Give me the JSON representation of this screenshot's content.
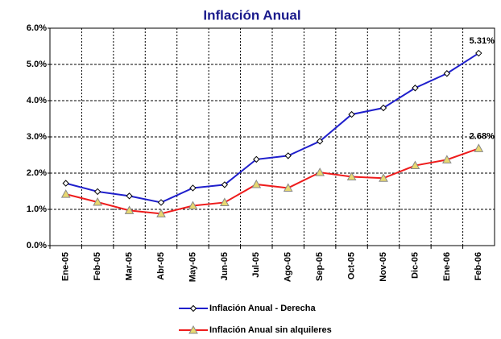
{
  "chart_data": {
    "type": "line",
    "title": "Inflación Anual",
    "categories": [
      "Ene-05",
      "Feb-05",
      "Mar-05",
      "Abr-05",
      "May-05",
      "Jun-05",
      "Jul-05",
      "Ago-05",
      "Sep-05",
      "Oct-05",
      "Nov-05",
      "Dic-05",
      "Ene-06",
      "Feb-06"
    ],
    "series": [
      {
        "name": "Inflación Anual - Derecha",
        "color": "#1f1fcc",
        "marker": "diamond",
        "values": [
          1.72,
          1.49,
          1.37,
          1.19,
          1.59,
          1.68,
          2.38,
          2.48,
          2.88,
          3.62,
          3.8,
          4.35,
          4.75,
          5.31
        ],
        "value_labels": [
          null,
          null,
          null,
          null,
          null,
          null,
          null,
          null,
          null,
          null,
          null,
          null,
          null,
          "5.31%"
        ]
      },
      {
        "name": "Inflación Anual  sin alquileres",
        "color": "#ee1c1c",
        "marker": "triangle",
        "values": [
          1.42,
          1.2,
          0.97,
          0.88,
          1.1,
          1.19,
          1.69,
          1.59,
          2.02,
          1.9,
          1.86,
          2.21,
          2.37,
          2.68
        ],
        "value_labels": [
          null,
          null,
          null,
          null,
          null,
          null,
          null,
          null,
          null,
          null,
          null,
          null,
          null,
          "2.68%"
        ]
      }
    ],
    "ylim": [
      0,
      6
    ],
    "yticks": [
      {
        "value": 0,
        "label": "0.0%"
      },
      {
        "value": 1,
        "label": "1.0%"
      },
      {
        "value": 2,
        "label": "2.0%"
      },
      {
        "value": 3,
        "label": "3.0%"
      },
      {
        "value": 4,
        "label": "4.0%"
      },
      {
        "value": 5,
        "label": "5.0%"
      },
      {
        "value": 6,
        "label": "6.0%"
      }
    ],
    "grid": true,
    "legend": "bottom"
  }
}
